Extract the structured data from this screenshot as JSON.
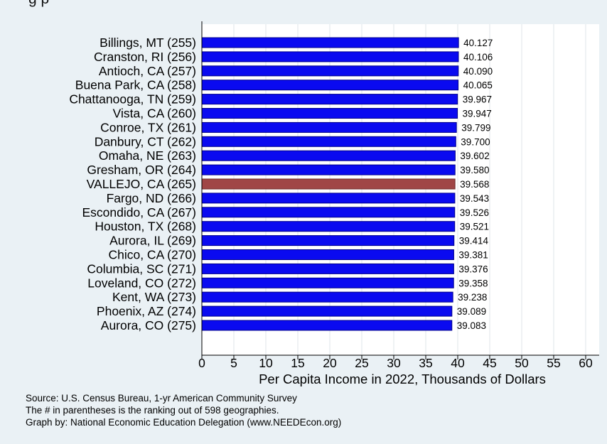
{
  "title_fragment": "g                    p",
  "chart_data": {
    "type": "bar",
    "orientation": "horizontal",
    "categories": [
      "Billings, MT (255)",
      "Cranston, RI (256)",
      "Antioch, CA (257)",
      "Buena Park, CA (258)",
      "Chattanooga, TN (259)",
      "Vista, CA (260)",
      "Conroe, TX (261)",
      "Danbury, CT (262)",
      "Omaha, NE (263)",
      "Gresham, OR (264)",
      "VALLEJO, CA (265)",
      "Fargo, ND (266)",
      "Escondido, CA (267)",
      "Houston, TX (268)",
      "Aurora, IL (269)",
      "Chico, CA (270)",
      "Columbia, SC (271)",
      "Loveland, CO (272)",
      "Kent, WA (273)",
      "Phoenix, AZ (274)",
      "Aurora, CO (275)"
    ],
    "values": [
      40.127,
      40.106,
      40.09,
      40.065,
      39.967,
      39.947,
      39.799,
      39.7,
      39.602,
      39.58,
      39.568,
      39.543,
      39.526,
      39.521,
      39.414,
      39.381,
      39.376,
      39.358,
      39.238,
      39.089,
      39.083
    ],
    "value_labels": [
      "40.127",
      "40.106",
      "40.090",
      "40.065",
      "39.967",
      "39.947",
      "39.799",
      "39.700",
      "39.602",
      "39.580",
      "39.568",
      "39.543",
      "39.526",
      "39.521",
      "39.414",
      "39.381",
      "39.376",
      "39.358",
      "39.238",
      "39.089",
      "39.083"
    ],
    "highlight_index": 10,
    "xlabel": "Per Capita Income in 2022, Thousands of Dollars",
    "ylabel": "",
    "xlim": [
      0,
      62
    ],
    "xticks": [
      0,
      5,
      10,
      15,
      20,
      25,
      30,
      35,
      40,
      45,
      50,
      55,
      60
    ],
    "grid": "vertical",
    "colors": {
      "bar": "#0a0af0",
      "bar_edge": "#00008b",
      "highlight": "#a04646",
      "highlight_edge": "#6e2a2a",
      "plot_background": "#ffffff",
      "page_background": "#eaf1f5",
      "grid": "#dfe6ea"
    }
  },
  "notes": [
    "Source: U.S. Census Bureau, 1-yr American Community Survey",
    "The # in parentheses is the ranking out of 598 geographies.",
    "Graph by: National Economic Education Delegation (www.NEEDEcon.org)"
  ]
}
